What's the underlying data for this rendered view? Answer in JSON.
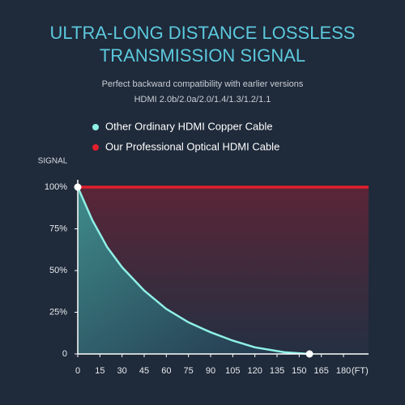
{
  "chart_data": {
    "type": "line",
    "title": [
      "ULTRA-LONG DISTANCE LOSSLESS",
      "TRANSMISSION SIGNAL"
    ],
    "subtitle": [
      "Perfect backward compatibility with earlier versions",
      "HDMI 2.0b/2.0a/2.0/1.4/1.3/1.2/1.1"
    ],
    "y_label": "SIGNAL",
    "x_label": "(FT)",
    "xlim": [
      0,
      197
    ],
    "ylim": [
      0,
      100
    ],
    "xticks": [
      0,
      15,
      30,
      45,
      60,
      75,
      90,
      105,
      120,
      135,
      150,
      165,
      180
    ],
    "yticks": [
      0,
      {
        "value": 25,
        "label": "25%"
      },
      {
        "value": 50,
        "label": "50%"
      },
      {
        "value": 75,
        "label": "75%"
      },
      {
        "value": 100,
        "label": "100%"
      }
    ],
    "series": [
      {
        "name": "Other Ordinary HDMI Copper Cable",
        "color": "#8ff0e6",
        "x": [
          0,
          10,
          20,
          30,
          45,
          60,
          75,
          90,
          105,
          120,
          140,
          157
        ],
        "values": [
          100,
          80,
          64,
          52,
          38,
          27,
          19,
          13,
          8,
          4,
          1,
          0
        ]
      },
      {
        "name": "Our Professional Optical HDMI Cable",
        "color": "#e0202c",
        "x": [
          0,
          197
        ],
        "values": [
          100,
          100
        ]
      }
    ]
  }
}
